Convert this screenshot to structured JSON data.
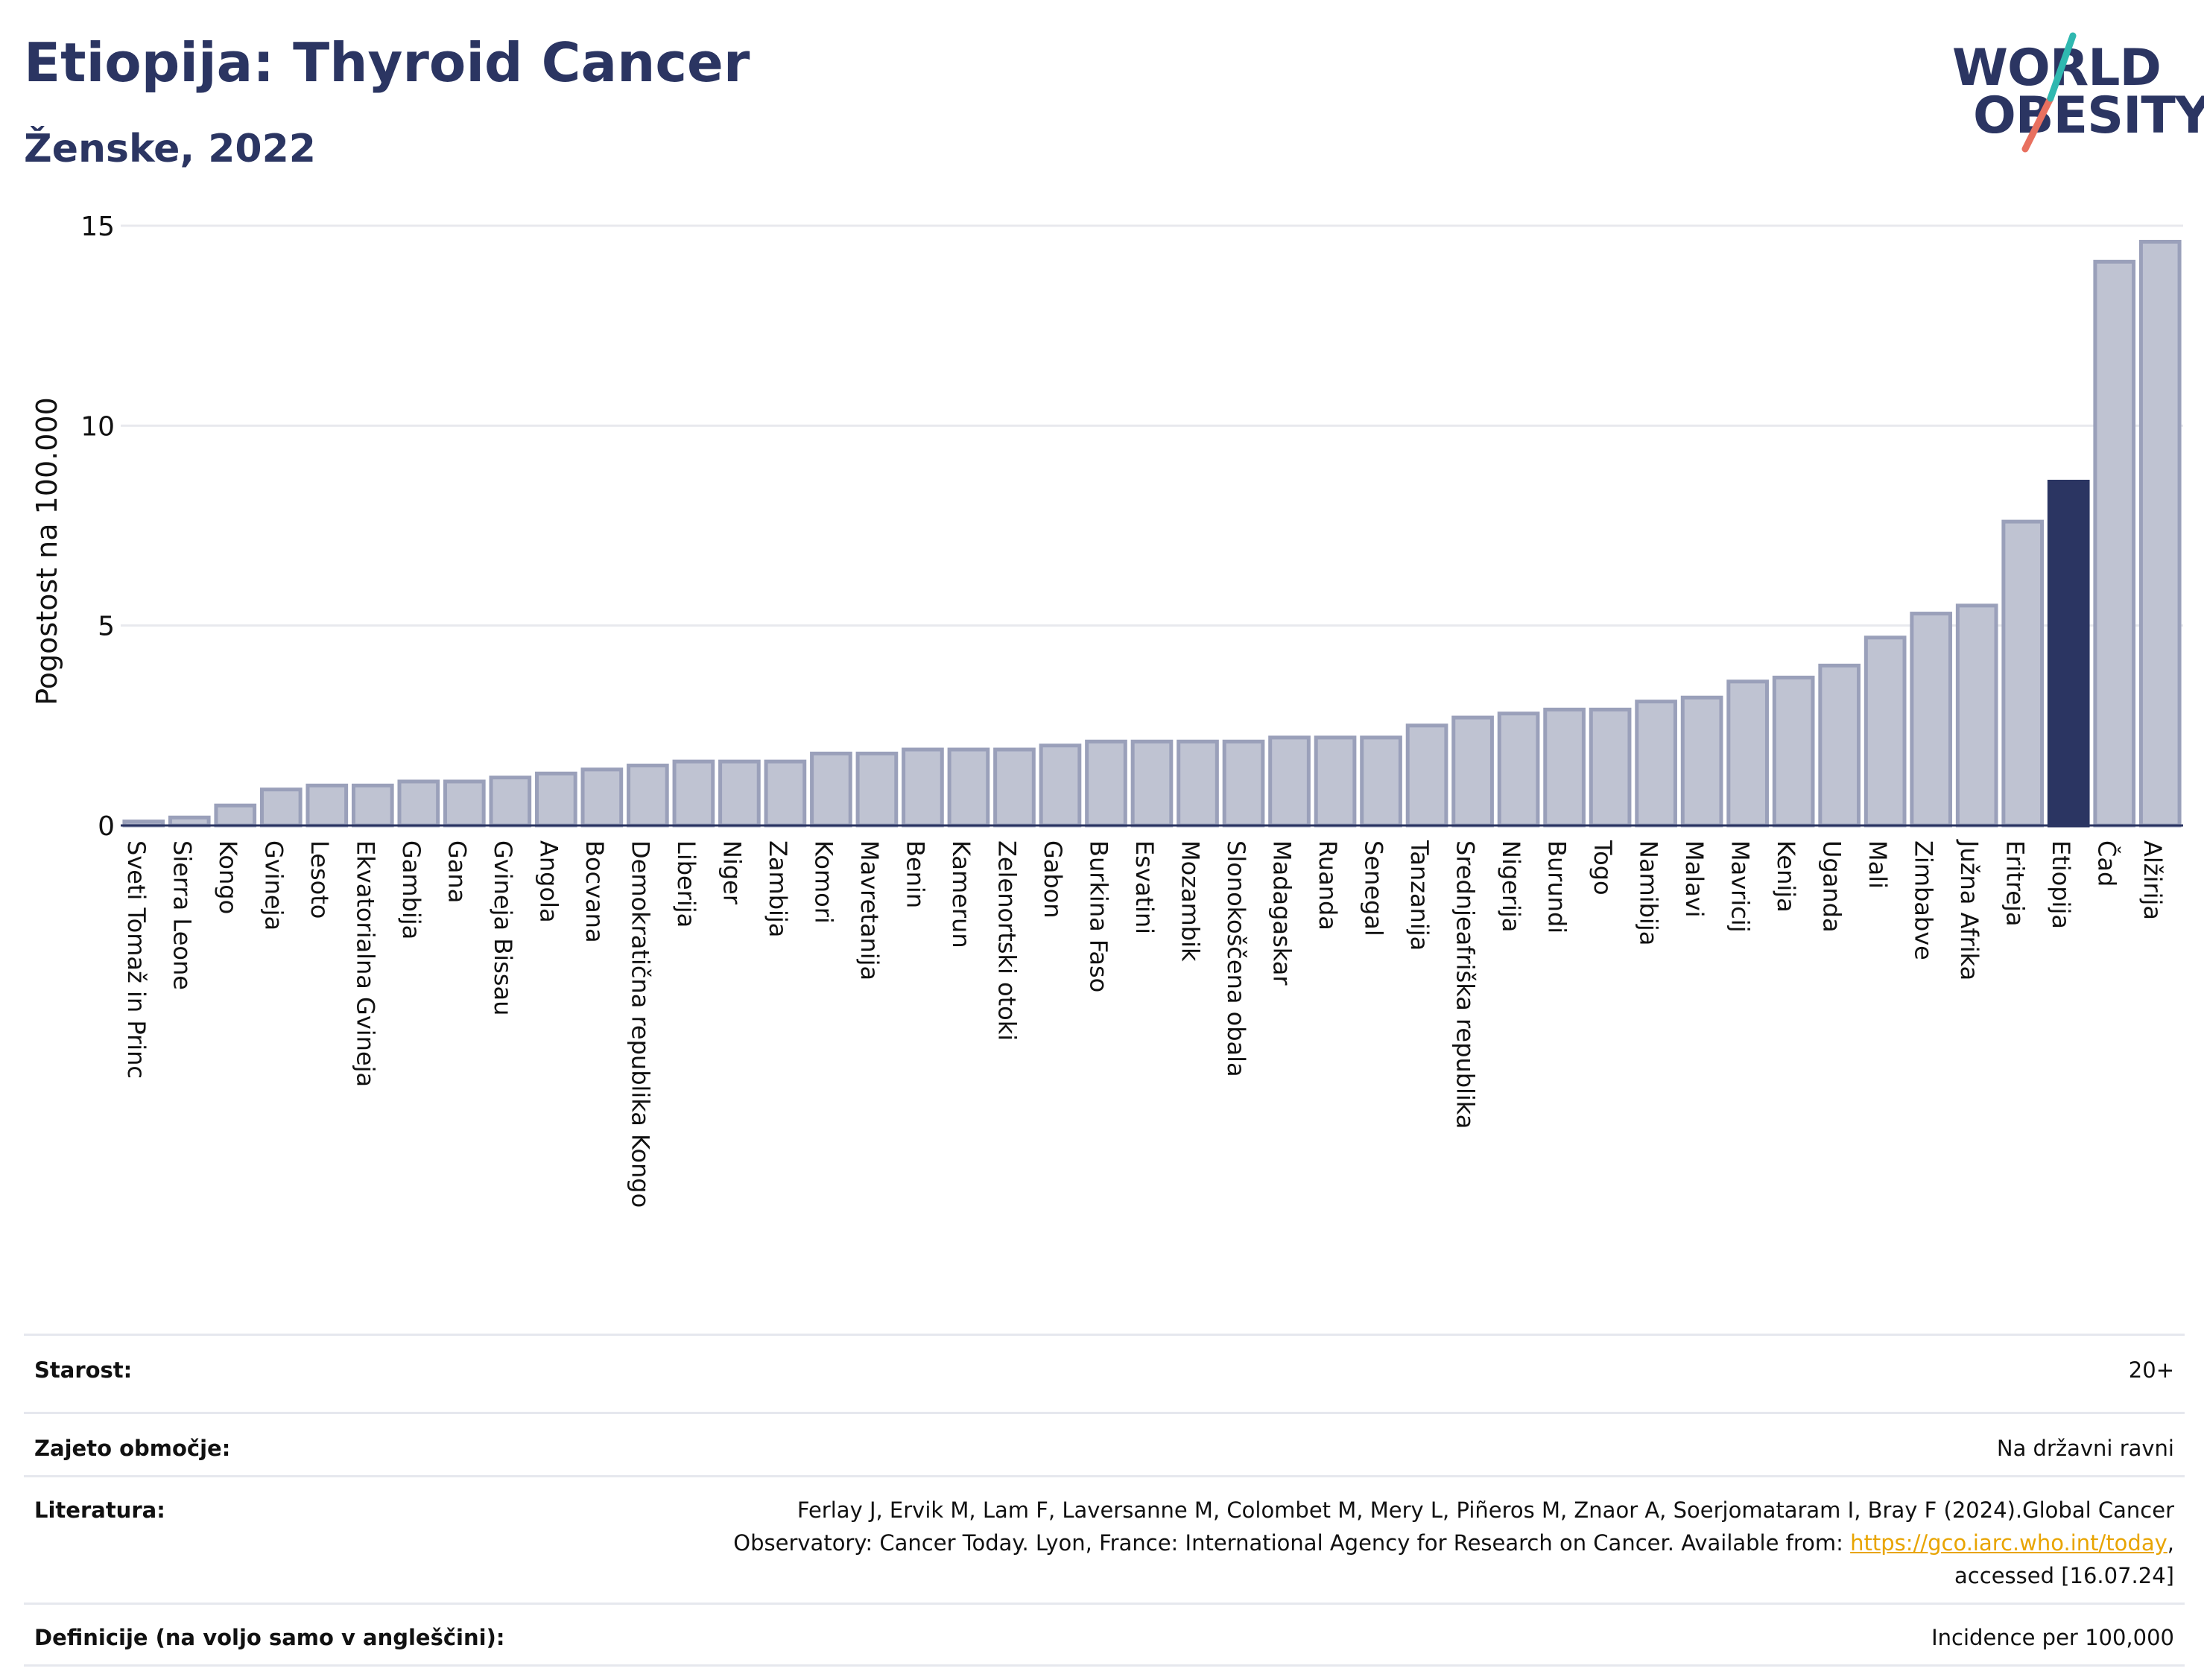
{
  "header": {
    "title": "Etiopija: Thyroid Cancer",
    "subtitle": "Ženske, 2022"
  },
  "logo": {
    "line1": "WORLD",
    "line2": "OBESITY",
    "slash_colors": [
      "#2fb8b0",
      "#e8705f"
    ]
  },
  "colors": {
    "bar_default": "#bfc3d2",
    "bar_stroke": "#9aa0ba",
    "bar_highlight": "#2b3562",
    "grid": "#e8e9ee",
    "axis": "#2b3562"
  },
  "chart_data": {
    "type": "bar",
    "ylabel": "Pogostost na 100.000",
    "ylim": [
      0,
      15
    ],
    "yticks": [
      0,
      5,
      10,
      15
    ],
    "highlight": "Etiopija",
    "grid": true,
    "categories": [
      "Sveti Tomaž in Princ",
      "Sierra Leone",
      "Kongo",
      "Gvineja",
      "Lesoto",
      "Ekvatorialna Gvineja",
      "Gambija",
      "Gana",
      "Gvineja Bissau",
      "Angola",
      "Bocvana",
      "Demokratična republika Kongo",
      "Liberija",
      "Niger",
      "Zambija",
      "Komori",
      "Mavretanija",
      "Benin",
      "Kamerun",
      "Zelenortski otoki",
      "Gabon",
      "Burkina Faso",
      "Esvatini",
      "Mozambik",
      "Slonokoščena obala",
      "Madagaskar",
      "Ruanda",
      "Senegal",
      "Tanzanija",
      "Srednjeafriška republika",
      "Nigerija",
      "Burundi",
      "Togo",
      "Namibija",
      "Malavi",
      "Mavricij",
      "Kenija",
      "Uganda",
      "Mali",
      "Zimbabve",
      "Južna Afrika",
      "Eritreja",
      "Etiopija",
      "Čad",
      "Alžirija"
    ],
    "values": [
      0.1,
      0.2,
      0.5,
      0.9,
      1.0,
      1.0,
      1.1,
      1.1,
      1.2,
      1.3,
      1.4,
      1.5,
      1.6,
      1.6,
      1.6,
      1.8,
      1.8,
      1.9,
      1.9,
      1.9,
      2.0,
      2.1,
      2.1,
      2.1,
      2.1,
      2.2,
      2.2,
      2.2,
      2.5,
      2.7,
      2.8,
      2.9,
      2.9,
      3.1,
      3.2,
      3.6,
      3.7,
      4.0,
      4.7,
      5.3,
      5.5,
      7.6,
      8.6,
      14.1,
      14.6
    ]
  },
  "info": {
    "rows": [
      {
        "label": "Starost:",
        "value": "20+"
      },
      {
        "label": "Zajeto območje:",
        "value": "Na državni ravni"
      },
      {
        "label": "Literatura:",
        "value_line1": "Ferlay J, Ervik M, Lam F, Laversanne M, Colombet M, Mery L, Piñeros M, Znaor A, Soerjomataram I, Bray F (2024).Global Cancer",
        "value_line2_pre": "Observatory: Cancer Today. Lyon, France: International Agency for Research on Cancer. Available from: ",
        "value_link": "https://gco.iarc.who.int/today",
        "value_line2_post": ",",
        "value_line3": "accessed [16.07.24]"
      },
      {
        "label": "Definicije (na voljo samo v angleščini):",
        "value": "Incidence per 100,000"
      }
    ]
  }
}
